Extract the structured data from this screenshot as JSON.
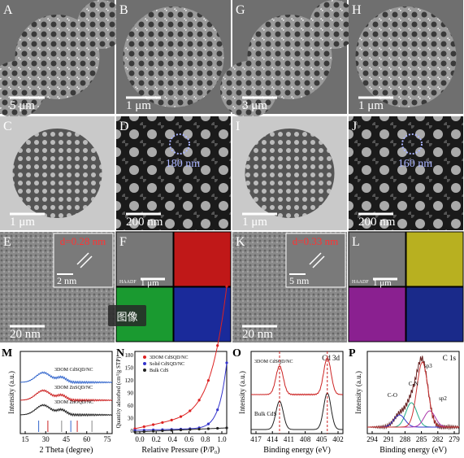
{
  "panels": [
    {
      "letter": "A",
      "scale": "5 μm"
    },
    {
      "letter": "B",
      "scale": "1 μm"
    },
    {
      "letter": "G",
      "scale": "3 μm"
    },
    {
      "letter": "H",
      "scale": "1 μm"
    },
    {
      "letter": "C",
      "scale": "1 μm"
    },
    {
      "letter": "D",
      "scale": "200 nm",
      "note": "180 nm"
    },
    {
      "letter": "I",
      "scale": "1 μm"
    },
    {
      "letter": "J",
      "scale": "200 nm",
      "note": "160 nm"
    },
    {
      "letter": "E",
      "scale": "20 nm",
      "inset": "d=0.28 nm",
      "inset_scale": "2 nm"
    },
    {
      "letter": "F",
      "scale": "1 μm",
      "tag": "HAADF"
    },
    {
      "letter": "K",
      "scale": "20 nm",
      "inset": "d=0.33 nm",
      "inset_scale": "5 nm"
    },
    {
      "letter": "L",
      "scale": "1 μm",
      "tag": "HAADF"
    }
  ],
  "overlay_button": "图像",
  "plots": [
    {
      "letter": "M",
      "ylabel": "Intensity (a.u.)",
      "xlabel": "2 Theta (degree)",
      "xticks": [
        "15",
        "30",
        "45",
        "60",
        "75"
      ],
      "legend": [
        "3DOM CdSQD/NC",
        "3DOM ZnSQD/NC",
        "3DOM ZnOQD/NC"
      ]
    },
    {
      "letter": "N",
      "ylabel": "Quantity adsorbed (cm³/g STP)",
      "xlabel": "Relative Pressure (P/P₀)",
      "xticks": [
        "0.0",
        "0.2",
        "0.4",
        "0.6",
        "0.8",
        "1.0"
      ],
      "yticks": [
        "0",
        "30",
        "60",
        "90",
        "120",
        "150",
        "180"
      ],
      "legend": [
        "3DOM CdSQD/NC",
        "Solid CdSQD/NC",
        "Bulk CdS"
      ]
    },
    {
      "letter": "O",
      "ylabel": "Intensity (a.u.)",
      "xlabel": "Binding energy (eV)",
      "xticks": [
        "417",
        "414",
        "411",
        "408",
        "405",
        "402"
      ],
      "title": "Cd 3d",
      "legend": [
        "3DOM CdSQD/NC",
        "Bulk CdS"
      ]
    },
    {
      "letter": "P",
      "ylabel": "Intensity (a.u.)",
      "xlabel": "Binding energy (eV)",
      "xticks": [
        "294",
        "291",
        "288",
        "285",
        "282",
        "279"
      ],
      "title": "C 1s",
      "legend": [
        "sp3",
        "C-N",
        "C-O",
        "sp2"
      ]
    }
  ]
}
